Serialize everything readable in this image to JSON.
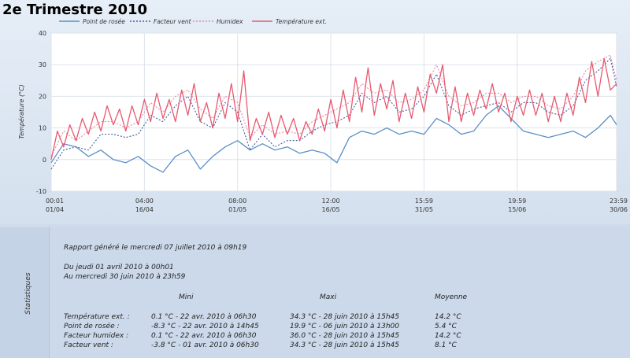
{
  "title": "2e Trimestre 2010",
  "chart_data": {
    "type": "line",
    "ylabel": "Température (°C)",
    "ylim": [
      -10,
      40
    ],
    "yticks": [
      -10,
      0,
      10,
      20,
      30,
      40
    ],
    "grid": true,
    "legend_position": "top",
    "x_range": [
      "2010-04-01 00:01",
      "2010-06-30 23:59"
    ],
    "xticks": [
      {
        "time": "00:01",
        "date": "01/04",
        "day": 0
      },
      {
        "time": "04:00",
        "date": "16/04",
        "day": 15
      },
      {
        "time": "08:00",
        "date": "01/05",
        "day": 30
      },
      {
        "time": "12:00",
        "date": "16/05",
        "day": 45
      },
      {
        "time": "15:59",
        "date": "31/05",
        "day": 60
      },
      {
        "time": "19:59",
        "date": "15/06",
        "day": 75
      },
      {
        "time": "23:59",
        "date": "30/06",
        "day": 91
      }
    ],
    "series": [
      {
        "name": "Point de rosée",
        "color": "#5b8fc7",
        "style": "solid",
        "points": [
          [
            0,
            -1
          ],
          [
            2,
            5
          ],
          [
            4,
            4
          ],
          [
            6,
            1
          ],
          [
            8,
            3
          ],
          [
            10,
            0
          ],
          [
            12,
            -1
          ],
          [
            14,
            1
          ],
          [
            16,
            -2
          ],
          [
            18,
            -4
          ],
          [
            20,
            1
          ],
          [
            22,
            3
          ],
          [
            24,
            -3
          ],
          [
            26,
            1
          ],
          [
            28,
            4
          ],
          [
            30,
            6
          ],
          [
            32,
            3
          ],
          [
            34,
            5
          ],
          [
            36,
            3
          ],
          [
            38,
            4
          ],
          [
            40,
            2
          ],
          [
            42,
            3
          ],
          [
            44,
            2
          ],
          [
            46,
            -1
          ],
          [
            48,
            7
          ],
          [
            50,
            9
          ],
          [
            52,
            8
          ],
          [
            54,
            10
          ],
          [
            56,
            8
          ],
          [
            58,
            9
          ],
          [
            60,
            8
          ],
          [
            62,
            13
          ],
          [
            64,
            11
          ],
          [
            66,
            8
          ],
          [
            68,
            9
          ],
          [
            70,
            14
          ],
          [
            72,
            17
          ],
          [
            74,
            13
          ],
          [
            76,
            9
          ],
          [
            78,
            8
          ],
          [
            80,
            7
          ],
          [
            82,
            8
          ],
          [
            84,
            9
          ],
          [
            86,
            7
          ],
          [
            88,
            10
          ],
          [
            90,
            14
          ],
          [
            91,
            11
          ]
        ]
      },
      {
        "name": "Facteur vent",
        "color": "#3f5f9f",
        "style": "dotted",
        "points": [
          [
            0,
            -3
          ],
          [
            2,
            3
          ],
          [
            4,
            4
          ],
          [
            6,
            3
          ],
          [
            8,
            8
          ],
          [
            10,
            8
          ],
          [
            12,
            7
          ],
          [
            14,
            8
          ],
          [
            16,
            14
          ],
          [
            18,
            12
          ],
          [
            20,
            17
          ],
          [
            22,
            20
          ],
          [
            24,
            12
          ],
          [
            26,
            10
          ],
          [
            28,
            18
          ],
          [
            30,
            15
          ],
          [
            32,
            3
          ],
          [
            34,
            8
          ],
          [
            36,
            4
          ],
          [
            38,
            6
          ],
          [
            40,
            6
          ],
          [
            42,
            9
          ],
          [
            44,
            11
          ],
          [
            46,
            12
          ],
          [
            48,
            14
          ],
          [
            50,
            21
          ],
          [
            52,
            18
          ],
          [
            54,
            20
          ],
          [
            56,
            15
          ],
          [
            58,
            16
          ],
          [
            60,
            20
          ],
          [
            62,
            27
          ],
          [
            64,
            17
          ],
          [
            66,
            14
          ],
          [
            68,
            16
          ],
          [
            70,
            17
          ],
          [
            72,
            18
          ],
          [
            74,
            15
          ],
          [
            76,
            18
          ],
          [
            78,
            18
          ],
          [
            80,
            15
          ],
          [
            82,
            14
          ],
          [
            84,
            17
          ],
          [
            86,
            25
          ],
          [
            88,
            28
          ],
          [
            90,
            32
          ],
          [
            91,
            23
          ]
        ]
      },
      {
        "name": "Humidex",
        "color": "#e58aa6",
        "style": "dotted",
        "points": [
          [
            0,
            1
          ],
          [
            2,
            9
          ],
          [
            4,
            6
          ],
          [
            6,
            9
          ],
          [
            8,
            12
          ],
          [
            10,
            12
          ],
          [
            12,
            10
          ],
          [
            14,
            12
          ],
          [
            16,
            18
          ],
          [
            18,
            15
          ],
          [
            20,
            20
          ],
          [
            22,
            22
          ],
          [
            24,
            16
          ],
          [
            26,
            13
          ],
          [
            28,
            20
          ],
          [
            30,
            18
          ],
          [
            32,
            7
          ],
          [
            34,
            11
          ],
          [
            36,
            8
          ],
          [
            38,
            9
          ],
          [
            40,
            8
          ],
          [
            42,
            12
          ],
          [
            44,
            14
          ],
          [
            46,
            16
          ],
          [
            48,
            18
          ],
          [
            50,
            24
          ],
          [
            52,
            21
          ],
          [
            54,
            22
          ],
          [
            56,
            18
          ],
          [
            58,
            19
          ],
          [
            60,
            22
          ],
          [
            62,
            30
          ],
          [
            64,
            20
          ],
          [
            66,
            17
          ],
          [
            68,
            18
          ],
          [
            70,
            21
          ],
          [
            72,
            21
          ],
          [
            74,
            18
          ],
          [
            76,
            20
          ],
          [
            78,
            20
          ],
          [
            80,
            17
          ],
          [
            82,
            16
          ],
          [
            84,
            20
          ],
          [
            86,
            28
          ],
          [
            88,
            31
          ],
          [
            90,
            33
          ],
          [
            91,
            25
          ]
        ]
      },
      {
        "name": "Température ext.",
        "color": "#e8596f",
        "style": "solid",
        "points": [
          [
            0,
            0
          ],
          [
            1,
            9
          ],
          [
            2,
            4
          ],
          [
            3,
            11
          ],
          [
            4,
            6
          ],
          [
            5,
            13
          ],
          [
            6,
            8
          ],
          [
            7,
            15
          ],
          [
            8,
            9
          ],
          [
            9,
            17
          ],
          [
            10,
            11
          ],
          [
            11,
            16
          ],
          [
            12,
            9
          ],
          [
            13,
            17
          ],
          [
            14,
            11
          ],
          [
            15,
            19
          ],
          [
            16,
            12
          ],
          [
            17,
            21
          ],
          [
            18,
            13
          ],
          [
            19,
            19
          ],
          [
            20,
            12
          ],
          [
            21,
            22
          ],
          [
            22,
            14
          ],
          [
            23,
            24
          ],
          [
            24,
            12
          ],
          [
            25,
            18
          ],
          [
            26,
            10
          ],
          [
            27,
            21
          ],
          [
            28,
            13
          ],
          [
            29,
            24
          ],
          [
            30,
            12
          ],
          [
            31,
            28
          ],
          [
            32,
            6
          ],
          [
            33,
            13
          ],
          [
            34,
            8
          ],
          [
            35,
            15
          ],
          [
            36,
            7
          ],
          [
            37,
            14
          ],
          [
            38,
            8
          ],
          [
            39,
            13
          ],
          [
            40,
            6
          ],
          [
            41,
            12
          ],
          [
            42,
            8
          ],
          [
            43,
            16
          ],
          [
            44,
            9
          ],
          [
            45,
            19
          ],
          [
            46,
            10
          ],
          [
            47,
            22
          ],
          [
            48,
            12
          ],
          [
            49,
            26
          ],
          [
            50,
            15
          ],
          [
            51,
            29
          ],
          [
            52,
            14
          ],
          [
            53,
            24
          ],
          [
            54,
            16
          ],
          [
            55,
            25
          ],
          [
            56,
            12
          ],
          [
            57,
            21
          ],
          [
            58,
            13
          ],
          [
            59,
            23
          ],
          [
            60,
            15
          ],
          [
            61,
            27
          ],
          [
            62,
            21
          ],
          [
            63,
            30
          ],
          [
            64,
            12
          ],
          [
            65,
            23
          ],
          [
            66,
            12
          ],
          [
            67,
            21
          ],
          [
            68,
            14
          ],
          [
            69,
            22
          ],
          [
            70,
            16
          ],
          [
            71,
            24
          ],
          [
            72,
            15
          ],
          [
            73,
            21
          ],
          [
            74,
            12
          ],
          [
            75,
            20
          ],
          [
            76,
            14
          ],
          [
            77,
            22
          ],
          [
            78,
            14
          ],
          [
            79,
            21
          ],
          [
            80,
            12
          ],
          [
            81,
            20
          ],
          [
            82,
            12
          ],
          [
            83,
            21
          ],
          [
            84,
            14
          ],
          [
            85,
            26
          ],
          [
            86,
            18
          ],
          [
            87,
            31
          ],
          [
            88,
            20
          ],
          [
            89,
            32
          ],
          [
            90,
            22
          ],
          [
            91,
            24
          ]
        ]
      }
    ]
  },
  "statistics": {
    "panel_label": "Statistiques",
    "report_line": "Rapport généré le mercredi 07 juillet 2010 à 09h19",
    "period_from": "Du jeudi 01 avril 2010 à 00h01",
    "period_to": "Au mercredi 30 juin 2010 à 23h59",
    "columns": [
      "Mini",
      "Maxi",
      "Moyenne"
    ],
    "rows": [
      {
        "label": "Température ext. :",
        "mini": "0.1 °C - 22 avr. 2010 à 06h30",
        "maxi": "34.3 °C - 28 juin 2010 à 15h45",
        "moyenne": "14.2 °C"
      },
      {
        "label": "Point de rosée :",
        "mini": "-8.3 °C - 22 avr. 2010 à 14h45",
        "maxi": "19.9 °C - 06 juin 2010 à 13h00",
        "moyenne": "5.4 °C"
      },
      {
        "label": "Facteur humidex :",
        "mini": "0.1 °C - 22 avr. 2010 à 06h30",
        "maxi": "36.0 °C - 28 juin 2010 à 15h45",
        "moyenne": "14.2 °C"
      },
      {
        "label": "Facteur vent :",
        "mini": "-3.8 °C - 01 avr. 2010 à 06h30",
        "maxi": "34.3 °C - 28 juin 2010 à 15h45",
        "moyenne": "8.1 °C"
      }
    ]
  }
}
